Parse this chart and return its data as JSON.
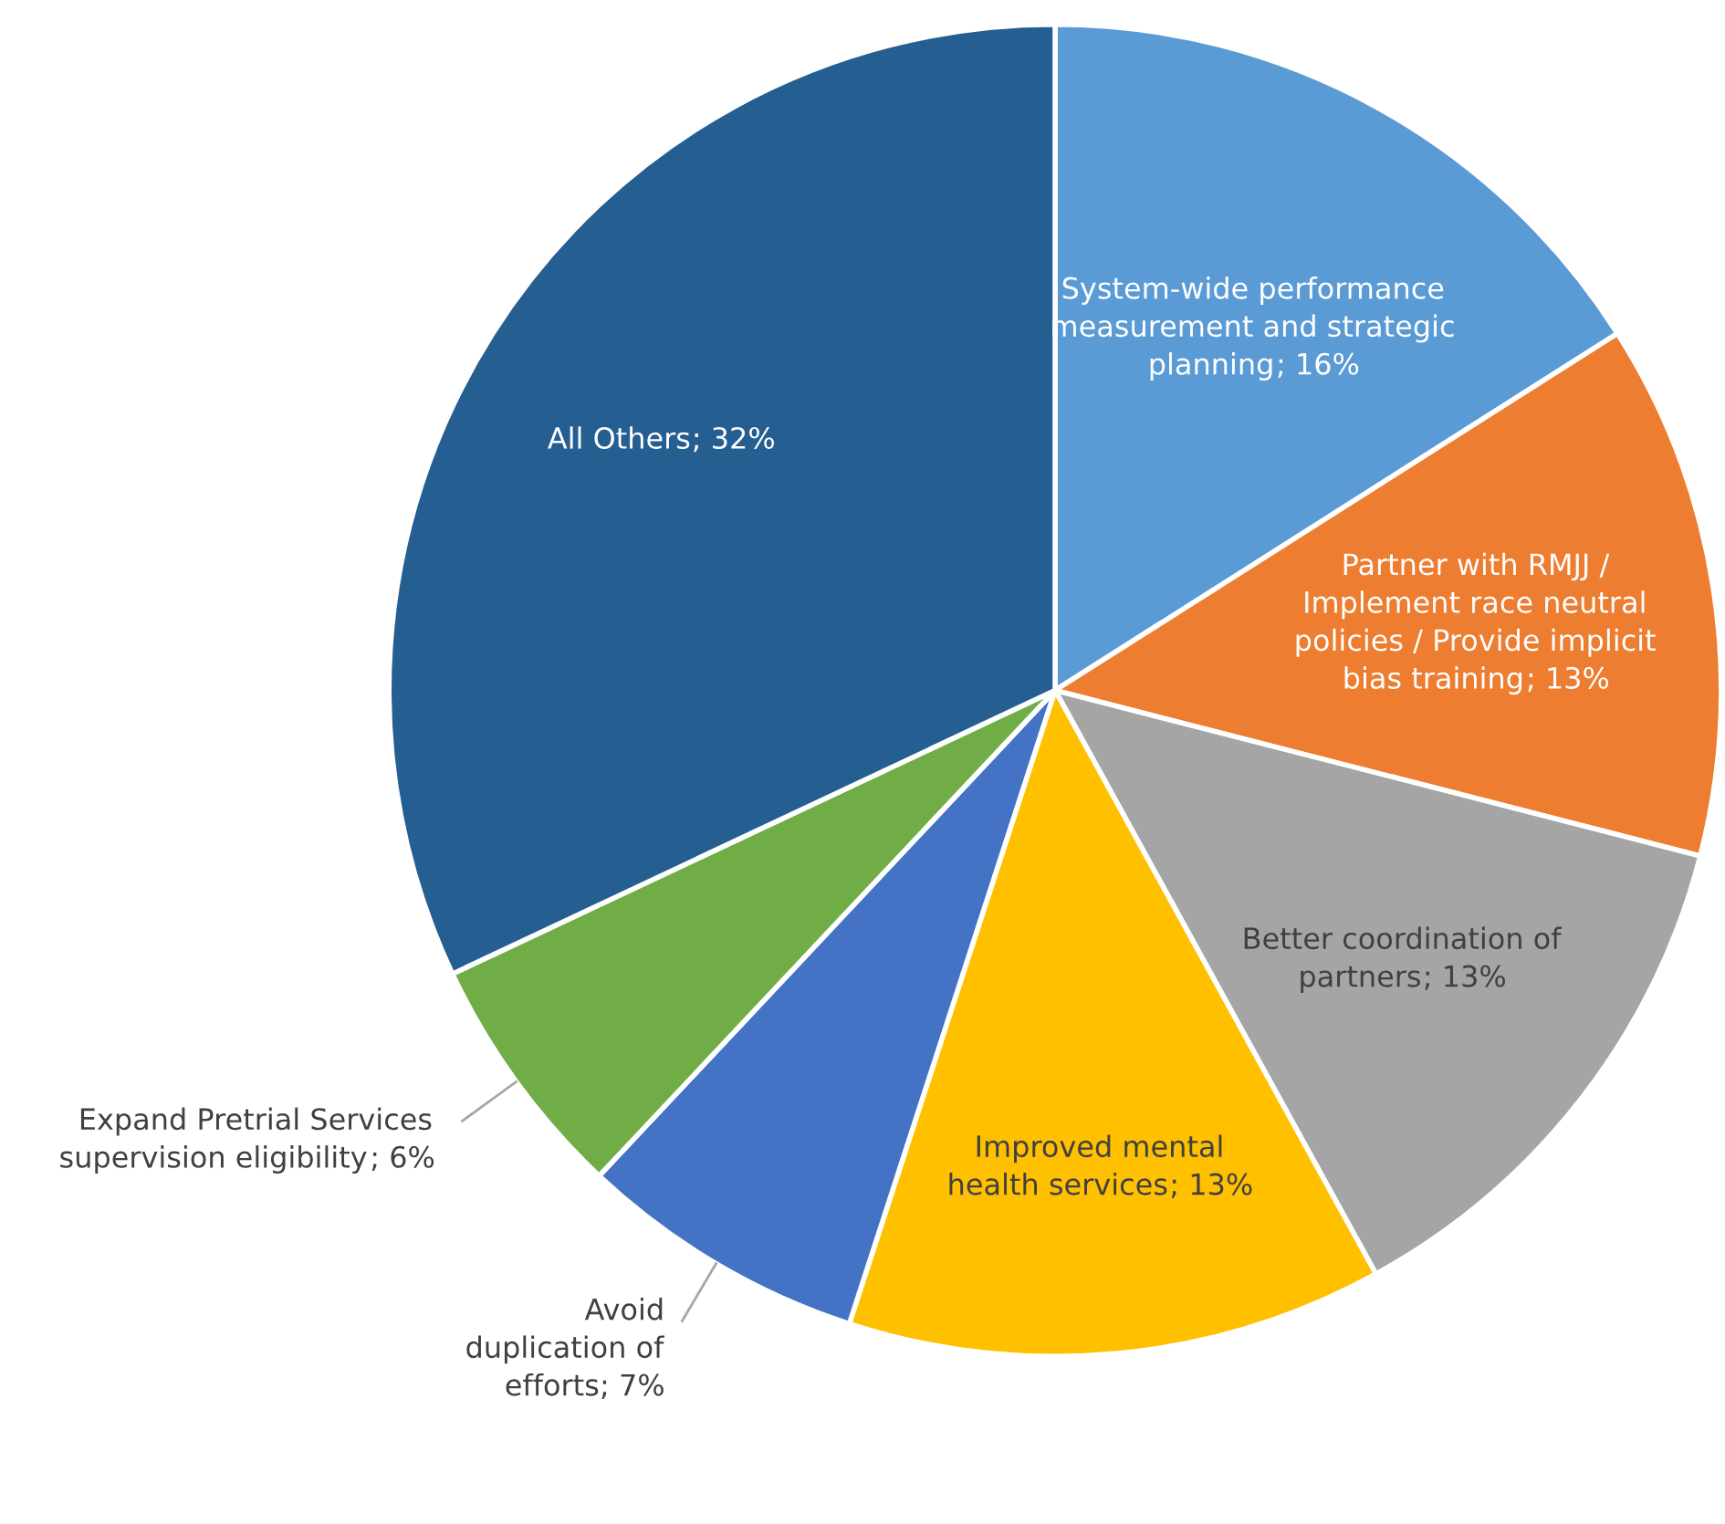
{
  "chart_data": {
    "type": "pie",
    "categories": [
      "System-wide performance measurement and strategic planning",
      "Partner with RMJJ / Implement race neutral policies / Provide implicit bias training",
      "Better coordination of partners",
      "Improved mental health services",
      "Avoid duplication of efforts",
      "Expand Pretrial Services supervision eligibility",
      "All Others"
    ],
    "values": [
      16,
      13,
      13,
      13,
      7,
      6,
      32
    ],
    "colors": [
      "#5b9bd5",
      "#ed7d31",
      "#a5a5a5",
      "#ffc000",
      "#4472c4",
      "#70ad47",
      "#255e91"
    ],
    "value_labels": [
      "; 16%",
      "; 13%",
      "; 13%",
      "; 13%",
      "; 7%",
      "; 6%",
      "; 32%"
    ],
    "legend": false
  }
}
